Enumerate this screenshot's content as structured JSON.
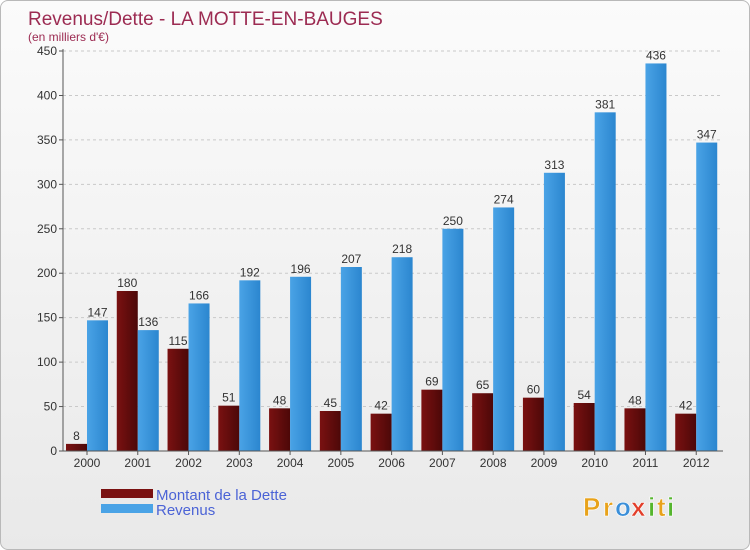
{
  "chart_data": {
    "type": "bar",
    "title": "Revenus/Dette - LA MOTTE-EN-BAUGES",
    "subtitle": "(en milliers d'€)",
    "categories": [
      "2000",
      "2001",
      "2002",
      "2003",
      "2004",
      "2005",
      "2006",
      "2007",
      "2008",
      "2009",
      "2010",
      "2011",
      "2012"
    ],
    "series": [
      {
        "name": "Montant de la Dette",
        "color": "#7a1111",
        "values": [
          8,
          180,
          115,
          51,
          48,
          45,
          42,
          69,
          65,
          60,
          54,
          48,
          42
        ]
      },
      {
        "name": "Revenus",
        "color": "#4aa3e6",
        "values": [
          147,
          136,
          166,
          192,
          196,
          207,
          218,
          250,
          274,
          313,
          381,
          436,
          347
        ]
      }
    ],
    "ylim": [
      0,
      450
    ],
    "yticks": [
      0,
      50,
      100,
      150,
      200,
      250,
      300,
      350,
      400,
      450
    ],
    "grid": true,
    "legend": "bottom-left"
  },
  "logo": {
    "letters": [
      "P",
      "r",
      "o",
      "x",
      "i",
      "t",
      "i"
    ],
    "colors": [
      "#e8a21a",
      "#e8a21a",
      "#3b8fd9",
      "#e23e2a",
      "#55b52d",
      "#e8a21a",
      "#55b52d"
    ]
  }
}
